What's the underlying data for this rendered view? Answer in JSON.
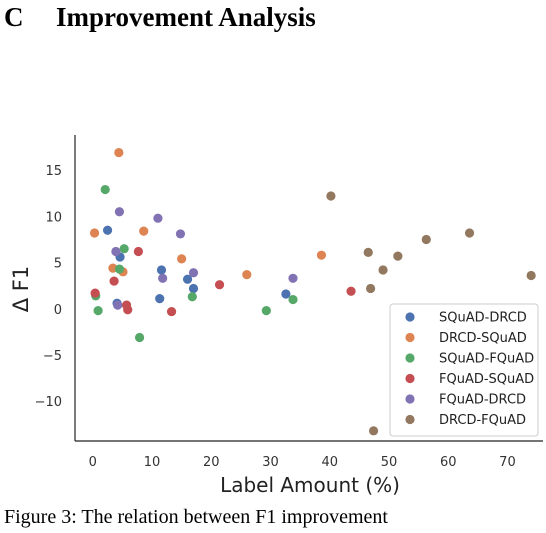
{
  "section": {
    "letter": "C",
    "title": "Improvement Analysis"
  },
  "caption": "Figure 3: The relation between F1 improvement",
  "chart_data": {
    "type": "scatter",
    "xlabel": "Label Amount (%)",
    "ylabel": "Δ F1",
    "xlim": [
      -3,
      76
    ],
    "ylim": [
      -14.3,
      18.8
    ],
    "xticks": [
      0,
      10,
      20,
      30,
      40,
      50,
      60,
      70
    ],
    "yticks": [
      15,
      10,
      5,
      0,
      -5,
      -10
    ],
    "grid": false,
    "legend_position": "lower-right",
    "series": [
      {
        "name": "SQuAD-DRCD",
        "color": "#4c72b0",
        "points": [
          [
            2.5,
            8.5
          ],
          [
            4.6,
            5.6
          ],
          [
            4.1,
            0.6
          ],
          [
            11.6,
            4.2
          ],
          [
            11.3,
            1.1
          ],
          [
            16,
            3.2
          ],
          [
            17,
            2.2
          ],
          [
            32.6,
            1.6
          ]
        ]
      },
      {
        "name": "DRCD-SQuAD",
        "color": "#dd8452",
        "points": [
          [
            0.3,
            8.2
          ],
          [
            4.4,
            16.9
          ],
          [
            3.4,
            4.4
          ],
          [
            5.1,
            4.0
          ],
          [
            8.6,
            8.4
          ],
          [
            15,
            5.4
          ],
          [
            26,
            3.7
          ],
          [
            38.6,
            5.8
          ]
        ]
      },
      {
        "name": "SQuAD-FQuAD",
        "color": "#55a868",
        "points": [
          [
            2.1,
            12.9
          ],
          [
            0.5,
            1.4
          ],
          [
            0.9,
            -0.2
          ],
          [
            4.5,
            4.3
          ],
          [
            5.3,
            6.5
          ],
          [
            7.9,
            -3.1
          ],
          [
            16.8,
            1.3
          ],
          [
            29.3,
            -0.2
          ],
          [
            33.8,
            1.0
          ]
        ]
      },
      {
        "name": "FQuAD-SQuAD",
        "color": "#c44e52",
        "points": [
          [
            0.4,
            1.7
          ],
          [
            3.6,
            3.0
          ],
          [
            7.7,
            6.2
          ],
          [
            5.7,
            0.4
          ],
          [
            5.9,
            -0.1
          ],
          [
            13.3,
            -0.3
          ],
          [
            21.4,
            2.6
          ],
          [
            43.6,
            1.9
          ]
        ]
      },
      {
        "name": "FQuAD-DRCD",
        "color": "#8172b3",
        "points": [
          [
            3.9,
            6.2
          ],
          [
            4.5,
            10.5
          ],
          [
            4.2,
            0.4
          ],
          [
            11,
            9.8
          ],
          [
            11.8,
            3.3
          ],
          [
            14.8,
            8.1
          ],
          [
            17,
            3.9
          ],
          [
            33.8,
            3.3
          ]
        ]
      },
      {
        "name": "DRCD-FQuAD",
        "color": "#937860",
        "points": [
          [
            40.2,
            12.2
          ],
          [
            46.5,
            6.1
          ],
          [
            49,
            4.2
          ],
          [
            51.5,
            5.7
          ],
          [
            56.3,
            7.5
          ],
          [
            63.6,
            8.2
          ],
          [
            74,
            3.6
          ],
          [
            46.9,
            2.2
          ],
          [
            47.4,
            -13.2
          ]
        ]
      }
    ]
  }
}
